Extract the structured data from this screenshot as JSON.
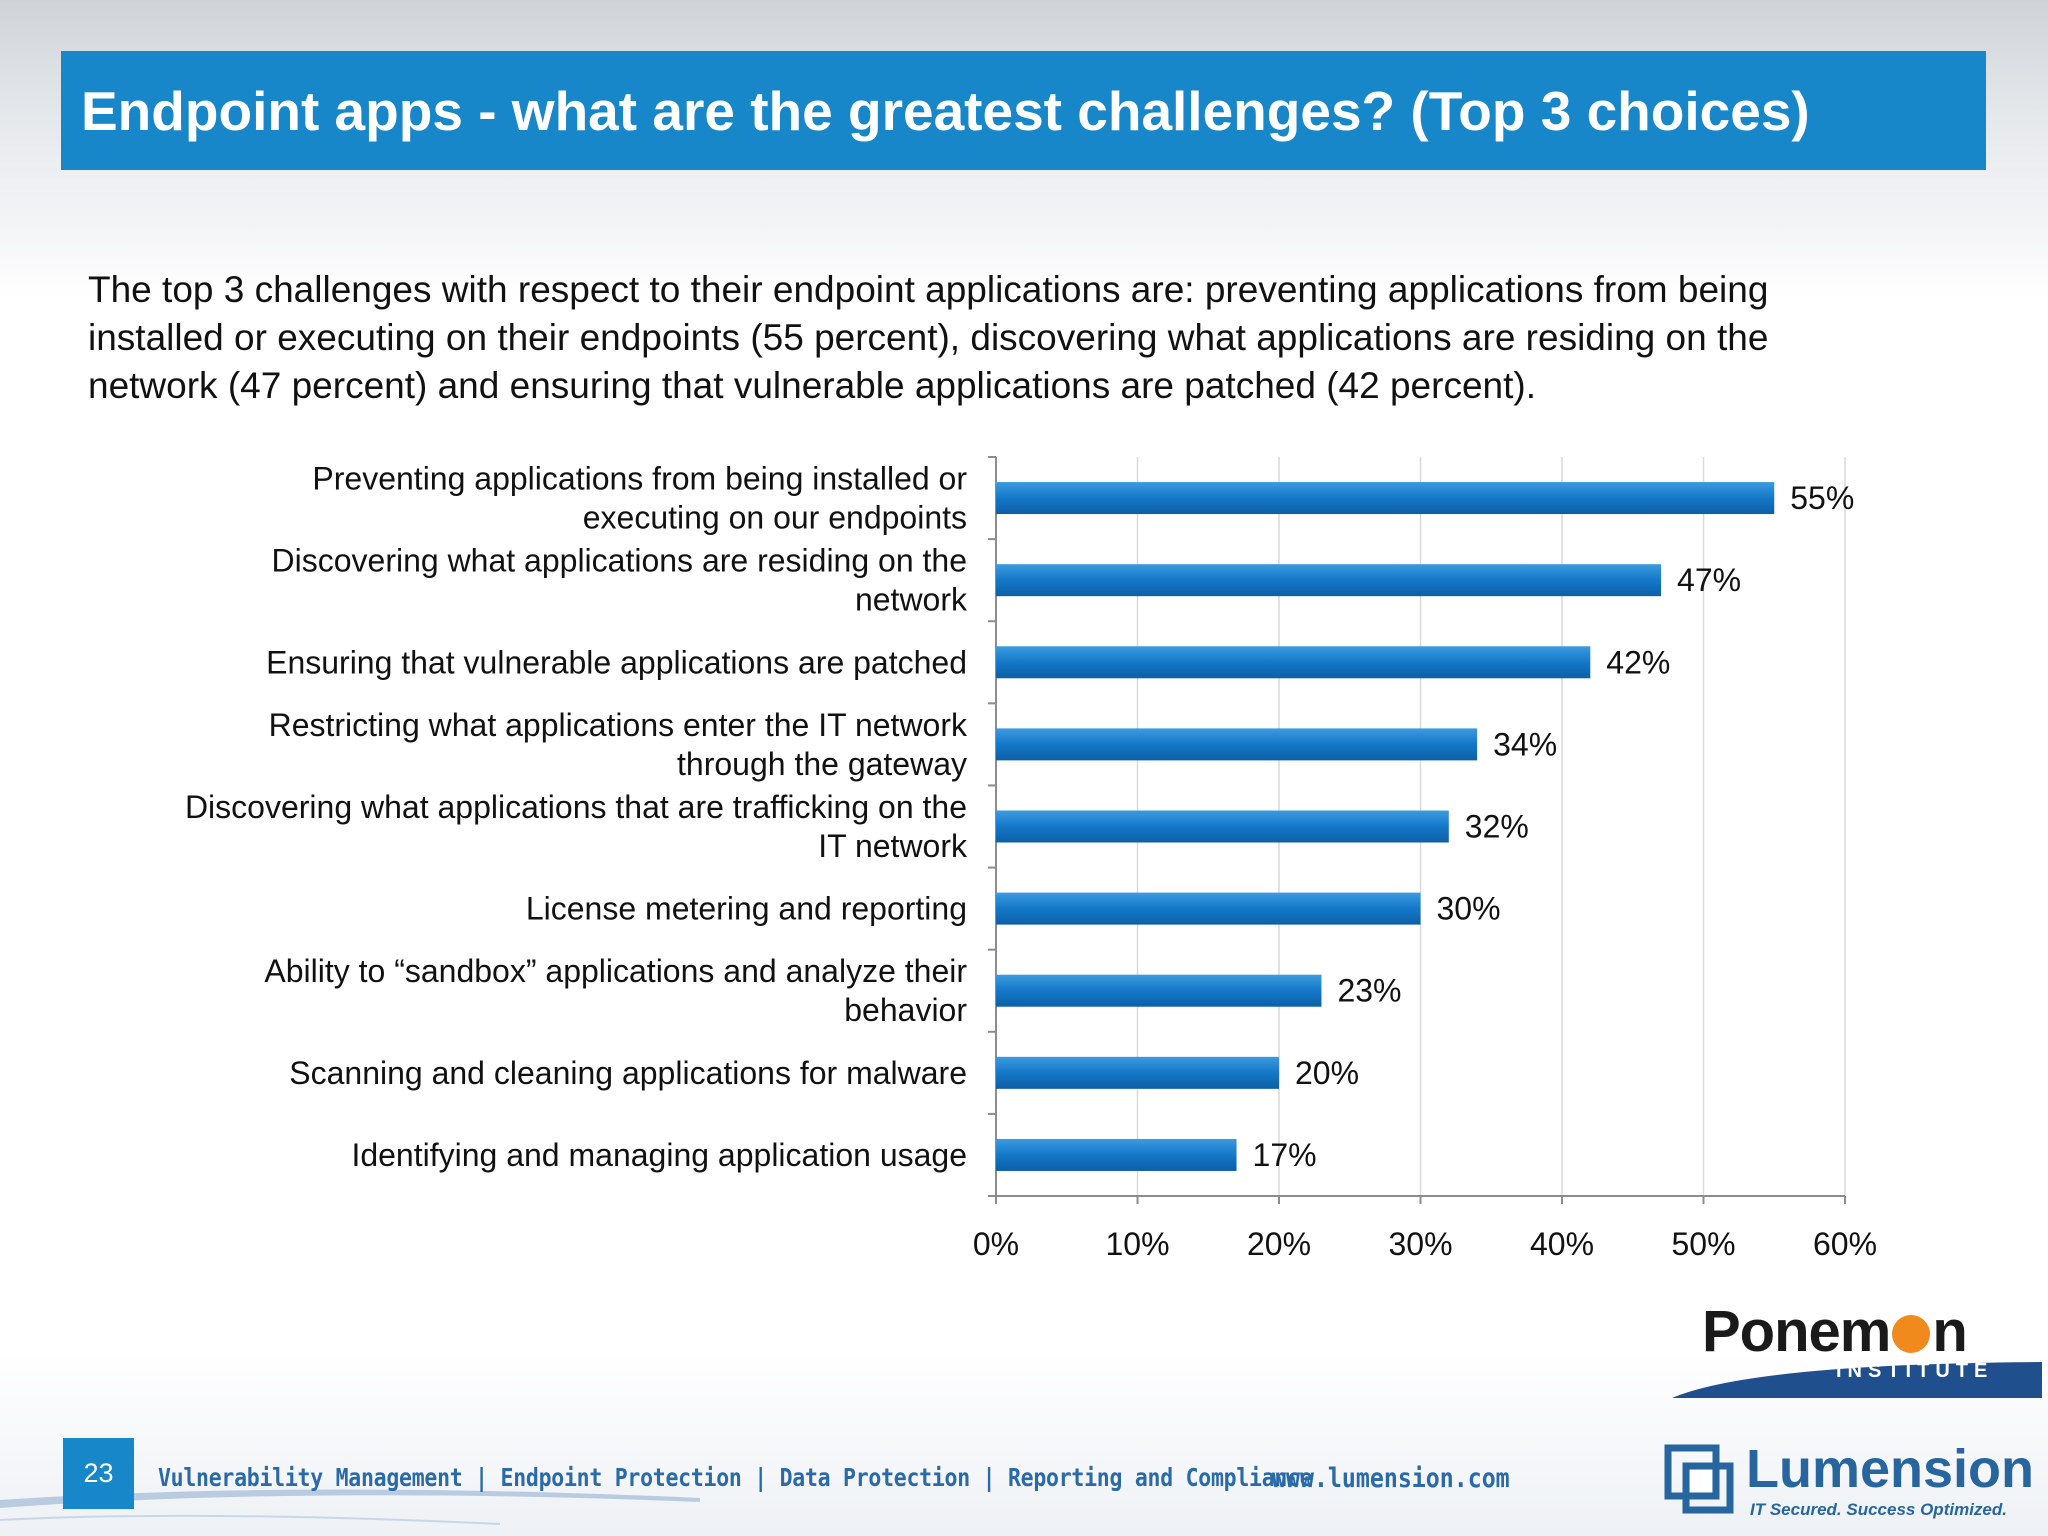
{
  "title": "Endpoint apps - what are the greatest challenges? (Top 3 choices)",
  "summary_lines": [
    "The top 3 challenges with respect to their endpoint applications are: preventing applications from being",
    "installed or executing on their endpoints (55 percent), discovering what applications are residing on the",
    "network (47 percent) and ensuring that vulnerable applications are patched (42 percent)."
  ],
  "chart_data": {
    "type": "bar",
    "orientation": "horizontal",
    "categories": [
      [
        "Preventing applications from being installed or",
        "executing on our endpoints"
      ],
      [
        "Discovering what applications are residing on the",
        "network"
      ],
      [
        "Ensuring that vulnerable applications are patched"
      ],
      [
        "Restricting what applications enter the IT network",
        "through the gateway"
      ],
      [
        "Discovering what applications that are trafficking on the",
        "IT network"
      ],
      [
        "License metering and reporting"
      ],
      [
        "Ability to “sandbox” applications and analyze their",
        "behavior"
      ],
      [
        "Scanning and cleaning applications for malware"
      ],
      [
        "Identifying and managing application usage"
      ]
    ],
    "values": [
      55,
      47,
      42,
      34,
      32,
      30,
      23,
      20,
      17
    ],
    "data_labels": [
      "55%",
      "47%",
      "42%",
      "34%",
      "32%",
      "30%",
      "23%",
      "20%",
      "17%"
    ],
    "xlim": [
      0,
      60
    ],
    "x_ticks": [
      "0%",
      "10%",
      "20%",
      "30%",
      "40%",
      "50%",
      "60%"
    ],
    "grid": "vertical",
    "bar_color": "#1478c8"
  },
  "footer": {
    "page_number": "23",
    "nav_text": "Vulnerability Management | Endpoint Protection | Data Protection | Reporting and Compliance",
    "url": "www.lumension.com"
  },
  "logos": {
    "ponemon": {
      "name_start": "Ponem",
      "name_end": "n",
      "sub": "INSTITUTE"
    },
    "lumension": {
      "name": "Lumension",
      "tagline": "IT Secured. Success Optimized."
    }
  }
}
